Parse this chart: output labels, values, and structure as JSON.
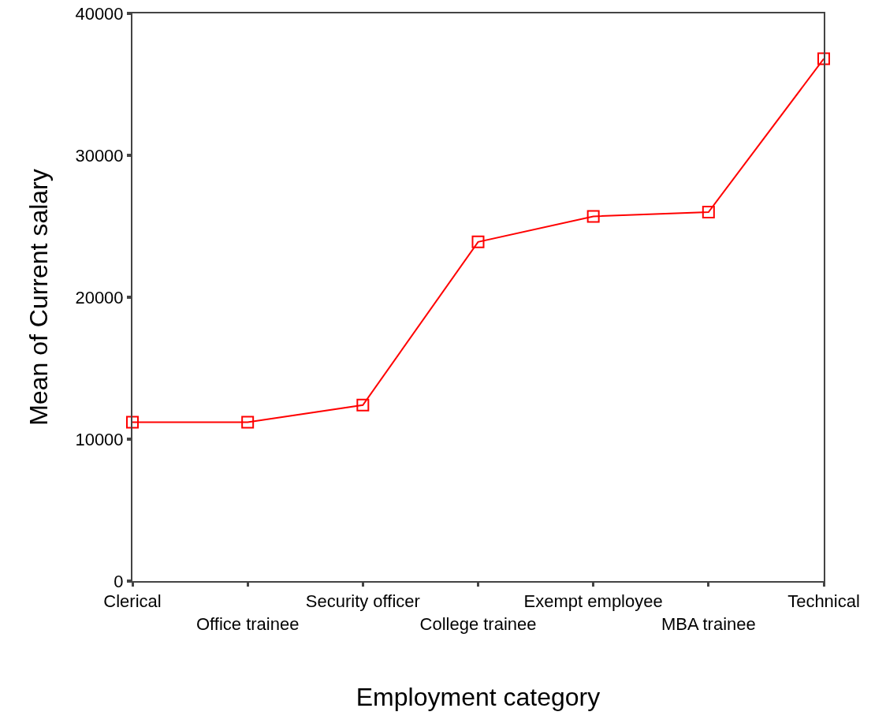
{
  "chart_data": {
    "type": "line",
    "xlabel": "Employment category",
    "ylabel": "Mean of Current salary",
    "categories": [
      "Clerical",
      "Office trainee",
      "Security officer",
      "College trainee",
      "Exempt employee",
      "MBA trainee",
      "Technical"
    ],
    "series": [
      {
        "color": "#ff0000",
        "values": [
          11200,
          11200,
          12400,
          23900,
          25700,
          26000,
          36800
        ]
      }
    ],
    "ylim": [
      0,
      40000
    ],
    "yticks": [
      0,
      10000,
      20000,
      30000,
      40000
    ],
    "grid": false,
    "marker": "square",
    "line_style": "solid"
  }
}
